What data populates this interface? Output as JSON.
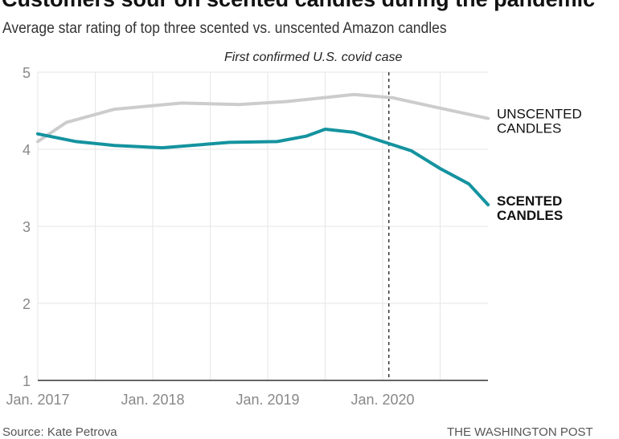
{
  "header": {
    "title": "Customers sour on scented candles during the pandemic",
    "subtitle": "Average star rating of top three scented vs. unscented Amazon candles"
  },
  "footer": {
    "source": "Source: Kate Petrova",
    "credit": "THE WASHINGTON POST"
  },
  "chart_data": {
    "type": "line",
    "title": "Customers sour on scented candles during the pandemic",
    "subtitle": "Average star rating of top three scented vs. unscented Amazon candles",
    "ylim": [
      1,
      5
    ],
    "yticks": [
      1,
      2,
      3,
      4,
      5
    ],
    "xlim": [
      "2017-01",
      "2020-12"
    ],
    "xticks": [
      {
        "date": "2017-01",
        "label": "Jan. 2017"
      },
      {
        "date": "2018-01",
        "label": "Jan. 2018"
      },
      {
        "date": "2019-01",
        "label": "Jan. 2019"
      },
      {
        "date": "2020-01",
        "label": "Jan. 2020"
      }
    ],
    "grid": true,
    "annotation": {
      "date": "2020-01-21",
      "label": "First confirmed U.S. covid case"
    },
    "series": [
      {
        "name": "UNSCENTED CANDLES",
        "color": "#cccccc",
        "points": [
          [
            "2017-01",
            4.1
          ],
          [
            "2017-04",
            4.35
          ],
          [
            "2017-09",
            4.52
          ],
          [
            "2018-04",
            4.6
          ],
          [
            "2018-10",
            4.58
          ],
          [
            "2019-03",
            4.62
          ],
          [
            "2019-10",
            4.71
          ],
          [
            "2020-02",
            4.67
          ],
          [
            "2020-06",
            4.56
          ],
          [
            "2020-12",
            4.4
          ]
        ]
      },
      {
        "name": "SCENTED CANDLES",
        "color": "#14939f",
        "points": [
          [
            "2017-01",
            4.2
          ],
          [
            "2017-05",
            4.1
          ],
          [
            "2017-09",
            4.05
          ],
          [
            "2018-02",
            4.02
          ],
          [
            "2018-09",
            4.09
          ],
          [
            "2019-02",
            4.1
          ],
          [
            "2019-05",
            4.17
          ],
          [
            "2019-07",
            4.26
          ],
          [
            "2019-10",
            4.22
          ],
          [
            "2020-01",
            4.1
          ],
          [
            "2020-04",
            3.98
          ],
          [
            "2020-07",
            3.75
          ],
          [
            "2020-10",
            3.55
          ],
          [
            "2020-12",
            3.28
          ]
        ]
      }
    ]
  }
}
